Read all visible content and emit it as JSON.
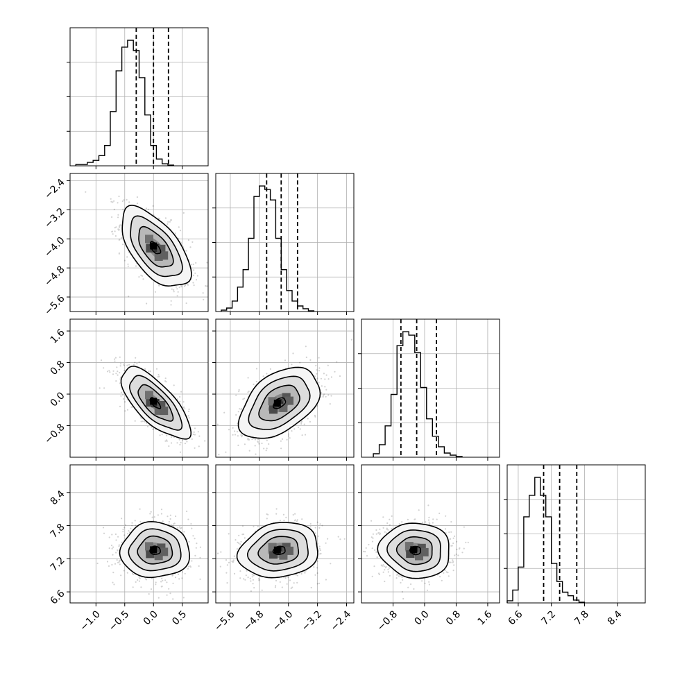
{
  "chart_data": {
    "type": "corner",
    "grid": true,
    "parameters": [
      {
        "range": [
          -1.45,
          0.95
        ],
        "ticks": [
          -1.0,
          -0.5,
          0.0,
          0.5
        ],
        "tick_labels": [
          "−1.0",
          "−0.5",
          "0.0",
          "0.5"
        ],
        "quantiles": [
          -0.3,
          0.0,
          0.26
        ],
        "histogram": {
          "start": -1.35,
          "bin_width": 0.1,
          "counts": [
            2,
            2,
            5,
            8,
            15,
            30,
            80,
            140,
            175,
            185,
            170,
            130,
            75,
            30,
            10,
            3,
            1
          ]
        }
      },
      {
        "range": [
          -6.0,
          -2.2
        ],
        "ticks": [
          -5.6,
          -4.8,
          -4.0,
          -3.2,
          -2.4
        ],
        "tick_labels": [
          "−5.6",
          "−4.8",
          "−4.0",
          "−3.2",
          "−2.4"
        ],
        "quantiles": [
          -4.6,
          -4.2,
          -3.75
        ],
        "histogram": {
          "start": -5.85,
          "bin_width": 0.15,
          "counts": [
            2,
            5,
            15,
            35,
            60,
            105,
            165,
            180,
            175,
            160,
            105,
            60,
            30,
            15,
            8,
            4,
            1
          ]
        }
      },
      {
        "range": [
          -1.6,
          1.9
        ],
        "ticks": [
          -0.8,
          0.0,
          0.8,
          1.6
        ],
        "tick_labels": [
          "−0.8",
          "0.0",
          "0.8",
          "1.6"
        ],
        "quantiles": [
          -0.6,
          -0.2,
          0.3
        ],
        "histogram": {
          "start": -1.3,
          "bin_width": 0.15,
          "counts": [
            5,
            18,
            45,
            90,
            160,
            180,
            175,
            150,
            100,
            55,
            30,
            15,
            6,
            3,
            1
          ]
        }
      },
      {
        "range": [
          6.4,
          8.9
        ],
        "ticks": [
          6.6,
          7.2,
          7.8,
          8.4
        ],
        "tick_labels": [
          "6.6",
          "7.2",
          "7.8",
          "8.4"
        ],
        "quantiles": [
          7.06,
          7.35,
          7.66
        ],
        "histogram": {
          "start": 6.4,
          "bin_width": 0.1,
          "counts": [
            3,
            18,
            50,
            120,
            150,
            175,
            150,
            120,
            55,
            30,
            15,
            10,
            4,
            1
          ]
        }
      }
    ],
    "pairs": [
      {
        "x": 0,
        "y": 1,
        "center": [
          0.03,
          -4.25
        ],
        "sd": [
          0.3,
          0.55
        ],
        "corr": -0.6
      },
      {
        "x": 0,
        "y": 2,
        "center": [
          0.03,
          -0.23
        ],
        "sd": [
          0.3,
          0.45
        ],
        "corr": -0.72
      },
      {
        "x": 1,
        "y": 2,
        "center": [
          -4.25,
          -0.23
        ],
        "sd": [
          0.55,
          0.45
        ],
        "corr": 0.45
      },
      {
        "x": 0,
        "y": 3,
        "center": [
          0.03,
          7.35
        ],
        "sd": [
          0.3,
          0.25
        ],
        "corr": 0.0
      },
      {
        "x": 1,
        "y": 3,
        "center": [
          -4.25,
          7.35
        ],
        "sd": [
          0.55,
          0.25
        ],
        "corr": 0.15
      },
      {
        "x": 2,
        "y": 3,
        "center": [
          -0.23,
          7.35
        ],
        "sd": [
          0.45,
          0.25
        ],
        "corr": -0.05
      }
    ]
  }
}
